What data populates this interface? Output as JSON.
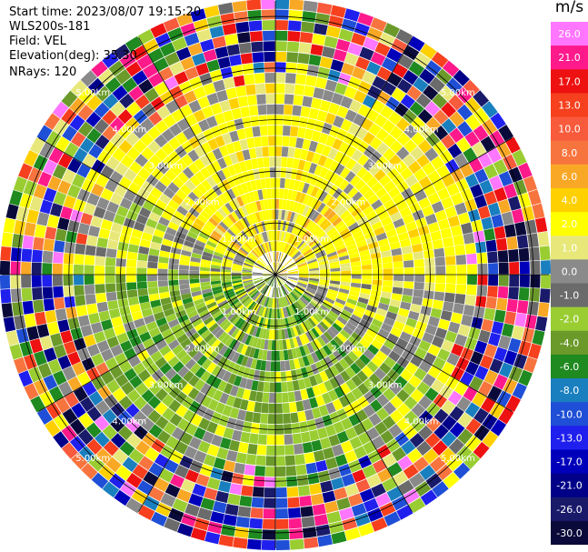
{
  "header": {
    "start_time": "Start time: 2023/08/07 19:15:20",
    "instrument": "WLS200s-181",
    "field": "Field: VEL",
    "elevation": "Elevation(deg): 35.30",
    "nrays": "NRays: 120"
  },
  "colorbar": {
    "unit": "m/s",
    "levels": [
      {
        "label": "26.0",
        "color": "#f7f"
      },
      {
        "label": "21.0",
        "color": "#ff1a8c"
      },
      {
        "label": "17.0",
        "color": "#ee1111"
      },
      {
        "label": "13.0",
        "color": "#f6401e"
      },
      {
        "label": "10.0",
        "color": "#f85a3c"
      },
      {
        "label": "8.0",
        "color": "#f8743e"
      },
      {
        "label": "6.0",
        "color": "#f9a825"
      },
      {
        "label": "4.0",
        "color": "#ffd000"
      },
      {
        "label": "2.0",
        "color": "#ffff00"
      },
      {
        "label": "1.0",
        "color": "#e8e87a"
      },
      {
        "label": "0.0",
        "color": "#8a8a8a"
      },
      {
        "label": "-1.0",
        "color": "#6b6b6b"
      },
      {
        "label": "-2.0",
        "color": "#9acd32"
      },
      {
        "label": "-4.0",
        "color": "#6b9a2a"
      },
      {
        "label": "-6.0",
        "color": "#1f8a1f"
      },
      {
        "label": "-8.0",
        "color": "#1a7fbf"
      },
      {
        "label": "-10.0",
        "color": "#1f4fd6"
      },
      {
        "label": "-13.0",
        "color": "#2020ee"
      },
      {
        "label": "-17.0",
        "color": "#0000bb"
      },
      {
        "label": "-21.0",
        "color": "#000088"
      },
      {
        "label": "-26.0",
        "color": "#1a1a6b"
      },
      {
        "label": "-30.0",
        "color": "#0a0a3a"
      }
    ]
  },
  "chart_data": {
    "type": "heatmap",
    "title": "",
    "field": "VEL",
    "elevation_deg": 35.3,
    "nrays": 120,
    "range_rings_km": [
      1.0,
      2.0,
      3.0,
      4.0,
      5.0
    ],
    "ring_labels": [
      "1.00km",
      "2.00km",
      "3.00km",
      "4.00km",
      "5.00km"
    ],
    "max_range_km": 5.3,
    "gates": 26
  }
}
